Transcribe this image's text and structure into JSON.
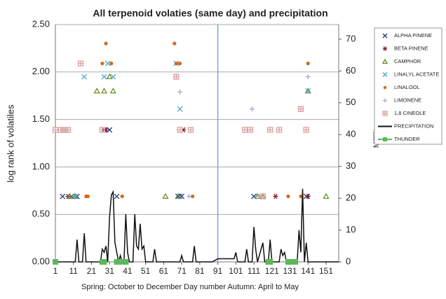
{
  "chart_data": {
    "type": "scatter",
    "title": "All terpenoid volaties (same day) and precipitation",
    "x_label": "Spring: October to December Day number  Autumn: April to May",
    "y_label": "log rank of volatiles",
    "y2_label": "Millilitres",
    "xlim": [
      1,
      158
    ],
    "xticks": [
      1,
      11,
      21,
      31,
      41,
      51,
      61,
      71,
      81,
      91,
      101,
      111,
      121,
      131,
      141,
      151
    ],
    "ylim": [
      0,
      2.5
    ],
    "yticks": [
      {
        "value": 0,
        "label": "0.00"
      },
      {
        "value": 0.5,
        "label": "0.50"
      },
      {
        "value": 1,
        "label": "1.00"
      },
      {
        "value": 1.5,
        "label": "1.50"
      },
      {
        "value": 2,
        "label": "2.00"
      },
      {
        "value": 2.5,
        "label": "2.50"
      }
    ],
    "y2lim": [
      0,
      74.6
    ],
    "y2ticks": [
      0,
      10,
      20,
      30,
      40,
      50,
      60,
      70
    ],
    "grid": true,
    "divider_x": 91,
    "divider_color": "#7aa6d6",
    "legend": "right",
    "series": [
      {
        "name": "ALPHA PINENE",
        "color": "#1f3a7a",
        "marker": "x",
        "x": [
          5,
          10,
          13,
          28,
          31,
          35,
          69,
          71,
          111,
          140
        ],
        "values": [
          0.69,
          0.69,
          0.69,
          1.39,
          1.39,
          0.69,
          0.69,
          0.69,
          0.69,
          0.69
        ]
      },
      {
        "name": "BETA PINENE",
        "color": "#8b1a2a",
        "marker": "star",
        "x": [
          8,
          29,
          70,
          72,
          123,
          141
        ],
        "values": [
          0.69,
          1.39,
          0.69,
          1.39,
          0.69,
          0.69
        ]
      },
      {
        "name": "CAMPHOR",
        "color": "#6b8e23",
        "marker": "triangle",
        "x": [
          9,
          12,
          28,
          24,
          31,
          33,
          62,
          69,
          113,
          116,
          141,
          151
        ],
        "values": [
          0.69,
          0.69,
          1.8,
          1.8,
          1.95,
          1.8,
          0.69,
          0.69,
          0.69,
          0.69,
          1.8,
          0.69
        ]
      },
      {
        "name": "LINALYL ACETATE",
        "color": "#4aa3d8",
        "marker": "x",
        "x": [
          12,
          17,
          28,
          30,
          33,
          68,
          70,
          70,
          141
        ],
        "values": [
          0.69,
          1.95,
          1.95,
          2.09,
          1.95,
          2.09,
          1.61,
          0.69,
          1.8
        ]
      },
      {
        "name": "LINALOOL",
        "color": "#d2691e",
        "marker": "circle",
        "x": [
          18,
          19,
          27,
          29,
          32,
          38,
          67,
          68,
          70,
          77,
          130,
          137,
          141
        ],
        "values": [
          0.69,
          0.69,
          2.09,
          2.3,
          2.09,
          0.69,
          2.3,
          2.09,
          2.09,
          0.69,
          0.69,
          0.69,
          2.09
        ]
      },
      {
        "name": "LIMONENE",
        "color": "#aaa3d6",
        "marker": "plus",
        "x": [
          70,
          75,
          110,
          114,
          141
        ],
        "values": [
          1.79,
          0.69,
          1.61,
          0.69,
          1.95
        ]
      },
      {
        "name": "1,8 CINEOLE",
        "color": "#d9a0a0",
        "marker": "square",
        "x": [
          1,
          4,
          6,
          8,
          15,
          27,
          68,
          70,
          76,
          106,
          109,
          116,
          120,
          125,
          137,
          140
        ],
        "values": [
          1.39,
          1.39,
          1.39,
          1.39,
          2.09,
          1.39,
          1.95,
          1.39,
          1.39,
          1.39,
          1.39,
          0.69,
          1.39,
          1.39,
          1.61,
          1.39
        ]
      },
      {
        "name": "PRECIPITATION",
        "color": "#111111",
        "marker": "line",
        "axis": "y2",
        "x": [
          1,
          12,
          13,
          14,
          16,
          17,
          18,
          26,
          27,
          28,
          29,
          30,
          31,
          32,
          33,
          34,
          35,
          36,
          37,
          38,
          39,
          40,
          41,
          42,
          44,
          45,
          46,
          47,
          48,
          49,
          50,
          51,
          55,
          56,
          57,
          70,
          71,
          72,
          77,
          78,
          79,
          88,
          91,
          100,
          101,
          102,
          106,
          107,
          108,
          110,
          111,
          112,
          113,
          116,
          117,
          119,
          120,
          121,
          125,
          126,
          127,
          128,
          129,
          135,
          136,
          137,
          138,
          139,
          140,
          141,
          146,
          158
        ],
        "values": [
          0,
          0,
          7,
          0,
          0,
          9,
          0,
          0,
          4,
          3,
          5,
          0,
          14,
          21,
          22,
          6,
          3,
          0,
          2,
          0,
          0,
          15,
          3,
          0,
          0,
          15,
          5,
          4,
          12,
          4,
          5,
          0,
          0,
          4,
          0,
          0,
          2,
          0,
          0,
          5,
          0,
          0,
          1,
          1,
          3,
          0,
          0,
          4,
          0,
          0,
          11,
          4,
          0,
          6,
          0,
          0,
          7,
          0,
          0,
          4,
          2,
          3,
          0,
          0,
          10,
          3,
          23,
          0,
          6,
          0,
          0,
          0
        ]
      },
      {
        "name": "THUNDER",
        "color": "#5cb85c",
        "marker": "filled-square",
        "x": [
          1,
          27,
          28,
          35,
          36,
          37,
          38,
          39,
          40,
          119,
          120,
          130,
          131,
          132,
          133,
          134
        ],
        "values": [
          0,
          0,
          0,
          0,
          0,
          0,
          0,
          0,
          0,
          0,
          0,
          0,
          0,
          0,
          0,
          0
        ]
      }
    ]
  }
}
